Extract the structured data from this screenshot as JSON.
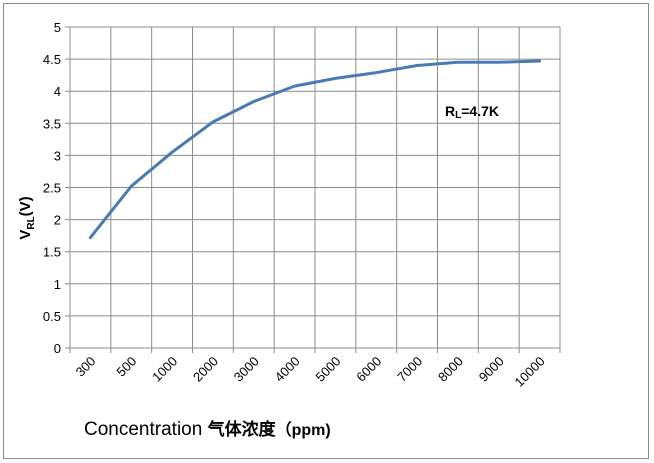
{
  "chart_data": {
    "type": "line",
    "categories": [
      "300",
      "500",
      "1000",
      "2000",
      "3000",
      "4000",
      "5000",
      "6000",
      "7000",
      "8000",
      "9000",
      "10000"
    ],
    "series": [
      {
        "values": [
          1.72,
          2.52,
          3.05,
          3.52,
          3.84,
          4.08,
          4.2,
          4.29,
          4.4,
          4.45,
          4.45,
          4.47
        ]
      }
    ],
    "y_ticks": [
      "0",
      "0.5",
      "1",
      "1.5",
      "2",
      "2.5",
      "3",
      "3.5",
      "4",
      "4.5",
      "5"
    ],
    "ylim": [
      0,
      5
    ],
    "ylabel": {
      "prefix": "V",
      "sub": "RL",
      "suffix": "(V)"
    },
    "xlabel": {
      "text": "Concentration",
      "chinese": "气体浓度",
      "unit": "（ppm)"
    },
    "annotation": {
      "prefix": "R",
      "sub": "L",
      "suffix": "=4.7K"
    },
    "grid": true,
    "line_color": "#4a7ab5",
    "grid_color": "#8c8c8c"
  }
}
